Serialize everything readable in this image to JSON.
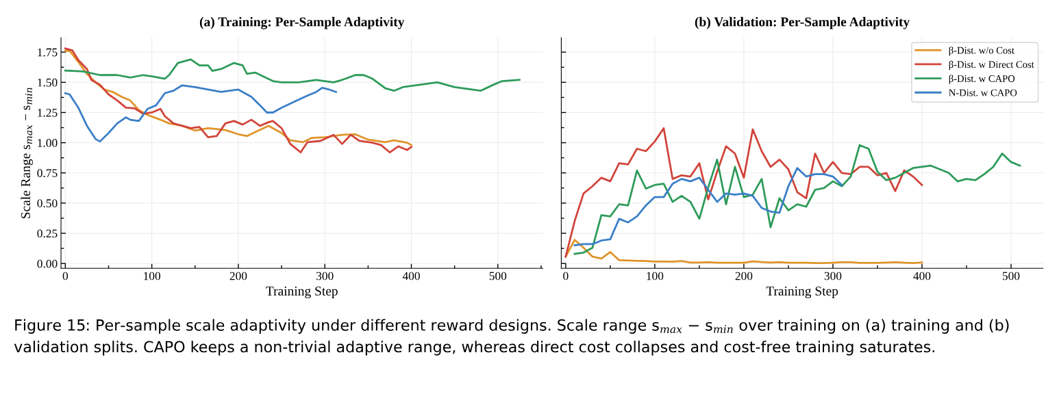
{
  "chart_data": [
    {
      "type": "line",
      "title": "(a) Training: Per-Sample Adaptivity",
      "xlabel": "Training Step",
      "ylabel": "Scale Range s$_{max}$ − s$_{min}$",
      "xlim": [
        -5,
        552
      ],
      "ylim": [
        -0.04,
        1.87
      ],
      "xticks": [
        0,
        {
          "value": 50,
          "label": null
        },
        100,
        {
          "value": 150,
          "label": null
        },
        200,
        {
          "value": 250,
          "label": null
        },
        300,
        {
          "value": 350,
          "label": null
        },
        400,
        {
          "value": 450,
          "label": null
        },
        500,
        {
          "value": 550,
          "label": null
        }
      ],
      "yticks": [
        {
          "value": 0,
          "label": "0.00"
        },
        {
          "value": 0.125,
          "label": null
        },
        0.25,
        {
          "value": 0.375,
          "label": null
        },
        {
          "value": 0.5,
          "label": "0.50"
        },
        {
          "value": 0.625,
          "label": null
        },
        0.75,
        {
          "value": 0.875,
          "label": null
        },
        {
          "value": 1,
          "label": "1.00"
        },
        {
          "value": 1.125,
          "label": null
        },
        1.25,
        {
          "value": 1.375,
          "label": null
        },
        {
          "value": 1.5,
          "label": "1.50"
        },
        {
          "value": 1.625,
          "label": null
        },
        1.75
      ],
      "grid": true,
      "legend": false,
      "annotations": [
        "Figure 15: Per-sample scale adaptivity under different reward designs. Scale range s$_{max}$ − s$_{min}$ over training on (a) training and (b) validation splits. CAPO keeps a non-trivial adaptive range, whereas direct cost collapses and cost-free training saturates."
      ],
      "series": [
        {
          "color": "#e0942a",
          "x": [
            0,
            5,
            15,
            25,
            35,
            45,
            55,
            65,
            75,
            85,
            95,
            110,
            120,
            135,
            150,
            165,
            185,
            200,
            210,
            220,
            235,
            240,
            250,
            260,
            275,
            285,
            300,
            320,
            335,
            350,
            370,
            380,
            395,
            400
          ],
          "values": [
            1.76,
            1.76,
            1.67,
            1.57,
            1.5,
            1.44,
            1.42,
            1.38,
            1.35,
            1.27,
            1.23,
            1.19,
            1.16,
            1.14,
            1.1,
            1.12,
            1.105,
            1.07,
            1.055,
            1.09,
            1.14,
            1.12,
            1.08,
            1.02,
            1.005,
            1.04,
            1.045,
            1.065,
            1.07,
            1.025,
            1.005,
            1.02,
            1.0,
            0.98
          ]
        },
        {
          "color": "#d1443a",
          "x": [
            0,
            8,
            15,
            25,
            30,
            40,
            50,
            60,
            70,
            80,
            90,
            100,
            110,
            115,
            125,
            135,
            145,
            155,
            165,
            175,
            185,
            195,
            205,
            215,
            225,
            235,
            240,
            250,
            260,
            272,
            280,
            295,
            310,
            320,
            330,
            340,
            355,
            365,
            375,
            385,
            395,
            400
          ],
          "values": [
            1.78,
            1.765,
            1.685,
            1.61,
            1.52,
            1.48,
            1.4,
            1.35,
            1.29,
            1.285,
            1.24,
            1.25,
            1.28,
            1.22,
            1.16,
            1.14,
            1.12,
            1.13,
            1.045,
            1.055,
            1.16,
            1.18,
            1.15,
            1.19,
            1.14,
            1.17,
            1.18,
            1.12,
            0.99,
            0.92,
            1.005,
            1.015,
            1.065,
            0.99,
            1.065,
            1.015,
            1.0,
            0.98,
            0.92,
            0.97,
            0.94,
            0.965
          ]
        },
        {
          "color": "#2e9b5a",
          "x": [
            0,
            20,
            40,
            60,
            75,
            90,
            100,
            115,
            120,
            130,
            145,
            155,
            165,
            170,
            180,
            195,
            205,
            210,
            220,
            230,
            240,
            250,
            270,
            290,
            310,
            320,
            335,
            345,
            355,
            370,
            380,
            390,
            410,
            430,
            450,
            470,
            480,
            495,
            505,
            525
          ],
          "values": [
            1.597,
            1.59,
            1.56,
            1.56,
            1.54,
            1.56,
            1.55,
            1.53,
            1.56,
            1.66,
            1.69,
            1.64,
            1.64,
            1.595,
            1.61,
            1.66,
            1.64,
            1.57,
            1.58,
            1.545,
            1.51,
            1.5,
            1.5,
            1.52,
            1.5,
            1.52,
            1.56,
            1.56,
            1.53,
            1.45,
            1.43,
            1.46,
            1.48,
            1.5,
            1.46,
            1.44,
            1.43,
            1.48,
            1.51,
            1.52
          ]
        },
        {
          "color": "#3a7fc8",
          "x": [
            0,
            5,
            15,
            25,
            35,
            40,
            50,
            60,
            70,
            75,
            85,
            95,
            105,
            115,
            125,
            135,
            150,
            165,
            180,
            200,
            215,
            225,
            233,
            240,
            250,
            265,
            280,
            290,
            297,
            305,
            313
          ],
          "values": [
            1.41,
            1.4,
            1.29,
            1.14,
            1.03,
            1.01,
            1.08,
            1.16,
            1.21,
            1.19,
            1.18,
            1.28,
            1.31,
            1.41,
            1.43,
            1.475,
            1.46,
            1.44,
            1.42,
            1.44,
            1.38,
            1.31,
            1.25,
            1.25,
            1.29,
            1.34,
            1.39,
            1.42,
            1.455,
            1.44,
            1.42
          ]
        }
      ]
    },
    {
      "type": "line",
      "title": "(b) Validation: Per-Sample Adaptivity",
      "xlabel": "Training Step",
      "xlim": [
        -5,
        536
      ],
      "ylim": [
        -0.04,
        1.87
      ],
      "xticks": [
        0,
        {
          "value": 50,
          "label": null
        },
        100,
        {
          "value": 150,
          "label": null
        },
        200,
        {
          "value": 250,
          "label": null
        },
        300,
        {
          "value": 350,
          "label": null
        },
        400,
        {
          "value": 450,
          "label": null
        },
        500
      ],
      "yticks": [
        0,
        {
          "value": 0.125,
          "label": null
        },
        0.25,
        {
          "value": 0.375,
          "label": null
        },
        0.5,
        {
          "value": 0.625,
          "label": null
        },
        0.75,
        {
          "value": 0.875,
          "label": null
        },
        1,
        {
          "value": 1.125,
          "label": null
        },
        1.25,
        {
          "value": 1.375,
          "label": null
        },
        1.5,
        {
          "value": 1.625,
          "label": null
        },
        1.75
      ],
      "grid": true,
      "legend": "top right",
      "tick_labels": "x",
      "series": [
        {
          "name": "β-Dist. w/o Cost",
          "color": "#e0942a",
          "x": [
            0,
            10,
            20,
            30,
            40,
            50,
            60,
            70,
            80,
            90,
            100,
            110,
            120,
            130,
            140,
            150,
            160,
            170,
            180,
            190,
            200,
            210,
            220,
            230,
            240,
            250,
            260,
            270,
            280,
            290,
            300,
            310,
            320,
            330,
            340,
            350,
            360,
            370,
            380,
            390,
            400
          ],
          "values": [
            0.057,
            0.195,
            0.13,
            0.057,
            0.04,
            0.095,
            0.027,
            0.025,
            0.022,
            0.02,
            0.016,
            0.016,
            0.015,
            0.02,
            0.008,
            0.008,
            0.01,
            0.006,
            0.006,
            0.006,
            0.006,
            0.017,
            0.012,
            0.008,
            0.01,
            0.006,
            0.006,
            0.006,
            0.003,
            0.004,
            0.006,
            0.01,
            0.01,
            0.005,
            0.005,
            0.005,
            0.008,
            0.01,
            0.006,
            0.003,
            0.008
          ]
        },
        {
          "name": "β-Dist. w Direct Cost",
          "color": "#d1443a",
          "x": [
            0,
            10,
            20,
            30,
            40,
            50,
            60,
            70,
            80,
            90,
            100,
            110,
            120,
            130,
            140,
            150,
            160,
            170,
            180,
            190,
            200,
            210,
            220,
            230,
            240,
            250,
            260,
            270,
            280,
            290,
            300,
            310,
            320,
            330,
            340,
            350,
            360,
            370,
            380,
            390,
            400
          ],
          "values": [
            0.057,
            0.35,
            0.58,
            0.64,
            0.71,
            0.68,
            0.83,
            0.82,
            0.95,
            0.93,
            1.01,
            1.12,
            0.7,
            0.73,
            0.72,
            0.83,
            0.53,
            0.76,
            0.97,
            0.91,
            0.71,
            1.11,
            0.93,
            0.8,
            0.86,
            0.78,
            0.59,
            0.54,
            0.91,
            0.75,
            0.84,
            0.75,
            0.74,
            0.8,
            0.8,
            0.73,
            0.75,
            0.6,
            0.77,
            0.72,
            0.65
          ]
        },
        {
          "name": "β-Dist. w CAPO",
          "color": "#2e9b5a",
          "x": [
            10,
            20,
            30,
            40,
            50,
            60,
            70,
            80,
            90,
            100,
            110,
            120,
            130,
            140,
            150,
            160,
            170,
            180,
            190,
            200,
            210,
            220,
            230,
            240,
            250,
            260,
            270,
            280,
            290,
            300,
            310,
            320,
            330,
            340,
            350,
            360,
            370,
            380,
            390,
            400,
            410,
            420,
            430,
            440,
            450,
            460,
            470,
            480,
            490,
            500,
            510
          ],
          "values": [
            0.08,
            0.09,
            0.13,
            0.4,
            0.39,
            0.49,
            0.48,
            0.77,
            0.62,
            0.65,
            0.66,
            0.51,
            0.56,
            0.51,
            0.37,
            0.63,
            0.86,
            0.49,
            0.8,
            0.55,
            0.57,
            0.7,
            0.3,
            0.54,
            0.44,
            0.49,
            0.47,
            0.61,
            0.625,
            0.68,
            0.64,
            0.72,
            0.98,
            0.95,
            0.76,
            0.69,
            0.71,
            0.75,
            0.79,
            0.8,
            0.81,
            0.78,
            0.75,
            0.68,
            0.7,
            0.69,
            0.74,
            0.8,
            0.91,
            0.84,
            0.81
          ]
        },
        {
          "name": "N-Dist. w CAPO",
          "color": "#3a7fc8",
          "x": [
            10,
            20,
            30,
            40,
            50,
            60,
            70,
            80,
            90,
            100,
            110,
            120,
            130,
            140,
            150,
            160,
            170,
            180,
            190,
            200,
            210,
            220,
            230,
            240,
            250,
            260,
            270,
            280,
            290,
            300,
            310
          ],
          "values": [
            0.15,
            0.16,
            0.16,
            0.19,
            0.2,
            0.37,
            0.34,
            0.39,
            0.48,
            0.55,
            0.55,
            0.66,
            0.7,
            0.68,
            0.71,
            0.61,
            0.51,
            0.58,
            0.57,
            0.58,
            0.56,
            0.46,
            0.43,
            0.42,
            0.64,
            0.79,
            0.72,
            0.74,
            0.74,
            0.72,
            0.65
          ]
        }
      ]
    }
  ]
}
